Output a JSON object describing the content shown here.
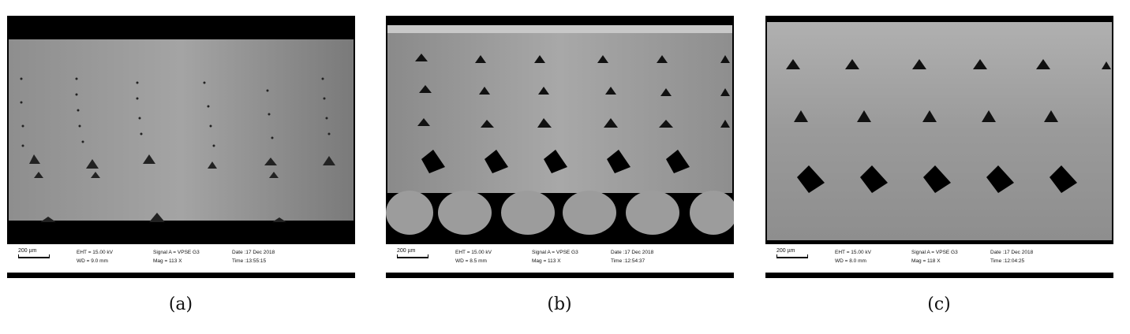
{
  "panels": [
    {
      "caption": "(a)",
      "scale_label": "200 µm",
      "eht": "EHT = 15.00 kV",
      "wd": "WD = 9.0 mm",
      "signal": "Signal A = VPSE G3",
      "mag": "Mag = 113 X",
      "date": "Date :17 Dec 2018",
      "time": "Time :13:55:15"
    },
    {
      "caption": "(b)",
      "scale_label": "200 µm",
      "eht": "EHT = 15.00 kV",
      "wd": "WD = 8.5 mm",
      "signal": "Signal A = VPSE G3",
      "mag": "Mag = 113 X",
      "date": "Date :17 Dec 2018",
      "time": "Time :12:54:37"
    },
    {
      "caption": "(c)",
      "scale_label": "200 µm",
      "eht": "EHT = 15.00 kV",
      "wd": "WD = 8.0 mm",
      "signal": "Signal A = VPSE G3",
      "mag": "Mag = 118 X",
      "date": "Date :17 Dec 2018",
      "time": "Time :12:04:25"
    }
  ]
}
